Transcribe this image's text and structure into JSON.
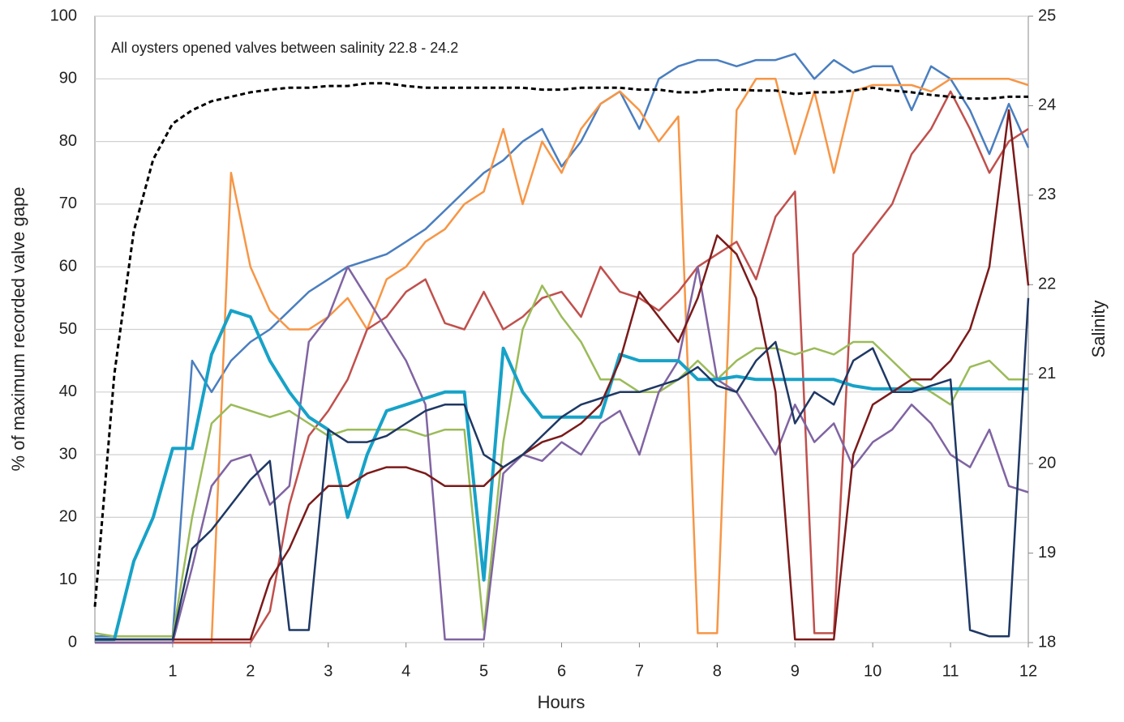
{
  "chart_data": {
    "type": "line",
    "annotation": "All oysters opened valves between salinity 22.8 - 24.2",
    "x_label": "Hours",
    "y_label": "% of maximum recorded valve gape",
    "y2_label": "Salinity",
    "x": [
      0,
      0.25,
      0.5,
      0.75,
      1,
      1.25,
      1.5,
      1.75,
      2,
      2.25,
      2.5,
      2.75,
      3,
      3.25,
      3.5,
      3.75,
      4,
      4.25,
      4.5,
      4.75,
      5,
      5.25,
      5.5,
      5.75,
      6,
      6.25,
      6.5,
      6.75,
      7,
      7.25,
      7.5,
      7.75,
      8,
      8.25,
      8.5,
      8.75,
      9,
      9.25,
      9.5,
      9.75,
      10,
      10.25,
      10.5,
      10.75,
      11,
      11.25,
      11.5,
      11.75,
      12
    ],
    "xlim": [
      0,
      12
    ],
    "xticks": [
      1,
      2,
      3,
      4,
      5,
      6,
      7,
      8,
      9,
      10,
      11,
      12
    ],
    "ylim": [
      0,
      100
    ],
    "yticks": [
      0,
      10,
      20,
      30,
      40,
      50,
      60,
      70,
      80,
      90,
      100
    ],
    "y2lim": [
      18,
      25
    ],
    "y2ticks": [
      18,
      19,
      20,
      21,
      22,
      23,
      24,
      25
    ],
    "grid": true,
    "series": [
      {
        "color": "#4a7ebf",
        "width": 2.5,
        "values": [
          1,
          1,
          1,
          1,
          1,
          45,
          40,
          45,
          48,
          50,
          53,
          56,
          58,
          60,
          61,
          62,
          64,
          66,
          69,
          72,
          75,
          77,
          80,
          82,
          76,
          80,
          86,
          88,
          82,
          90,
          92,
          93,
          93,
          92,
          93,
          93,
          94,
          90,
          93,
          91,
          92,
          92,
          85,
          92,
          90,
          85,
          78,
          86,
          79
        ]
      },
      {
        "color": "#f79646",
        "width": 2.5,
        "values": [
          0,
          0,
          0,
          0,
          0,
          0,
          0,
          75,
          60,
          53,
          50,
          50,
          52,
          55,
          50,
          58,
          60,
          64,
          66,
          70,
          72,
          82,
          70,
          80,
          75,
          82,
          86,
          88,
          85,
          80,
          84,
          1.5,
          1.5,
          85,
          90,
          90,
          78,
          88,
          75,
          88,
          89,
          89,
          89,
          88,
          90,
          90,
          90,
          90,
          89
        ]
      },
      {
        "color": "#c0504d",
        "width": 2.5,
        "values": [
          0,
          0,
          0,
          0,
          0,
          0,
          0,
          0,
          0,
          5,
          22,
          33,
          37,
          42,
          50,
          52,
          56,
          58,
          51,
          50,
          56,
          50,
          52,
          55,
          56,
          52,
          60,
          56,
          55,
          53,
          56,
          60,
          62,
          64,
          58,
          68,
          72,
          1.5,
          1.5,
          62,
          66,
          70,
          78,
          82,
          88,
          82,
          75,
          80,
          82
        ]
      },
      {
        "color": "#9bbb59",
        "width": 2.5,
        "values": [
          1.5,
          1,
          1,
          1,
          1,
          20,
          35,
          38,
          37,
          36,
          37,
          35,
          33,
          34,
          34,
          34,
          34,
          33,
          34,
          34,
          2,
          32,
          50,
          57,
          52,
          48,
          42,
          42,
          40,
          40,
          42,
          45,
          42,
          45,
          47,
          47,
          46,
          47,
          46,
          48,
          48,
          45,
          42,
          40,
          38,
          44,
          45,
          42,
          42
        ]
      },
      {
        "color": "#8064a2",
        "width": 2.5,
        "values": [
          0,
          0,
          0,
          0,
          0,
          12,
          25,
          29,
          30,
          22,
          25,
          48,
          52,
          60,
          55,
          50,
          45,
          38,
          0.5,
          0.5,
          0.5,
          27,
          30,
          29,
          32,
          30,
          35,
          37,
          30,
          40,
          45,
          60,
          42,
          40,
          35,
          30,
          38,
          32,
          35,
          28,
          32,
          34,
          38,
          35,
          30,
          28,
          34,
          25,
          24
        ]
      },
      {
        "color": "#17a2c8",
        "width": 4,
        "values": [
          0.5,
          0.5,
          13,
          20,
          31,
          31,
          46,
          53,
          52,
          45,
          40,
          36,
          34,
          20,
          30,
          37,
          38,
          39,
          40,
          40,
          10,
          47,
          40,
          36,
          36,
          36,
          36,
          46,
          45,
          45,
          45,
          42,
          42,
          42.5,
          42,
          42,
          42,
          42,
          42,
          41,
          40.5,
          40.5,
          40.5,
          40.5,
          40.5,
          40.5,
          40.5,
          40.5,
          40.5
        ]
      },
      {
        "color": "#7b1a1a",
        "width": 2.5,
        "values": [
          0.5,
          0.5,
          0.5,
          0.5,
          0.5,
          0.5,
          0.5,
          0.5,
          0.5,
          10,
          15,
          22,
          25,
          25,
          27,
          28,
          28,
          27,
          25,
          25,
          25,
          28,
          30,
          32,
          33,
          35,
          38,
          45,
          56,
          52,
          48,
          55,
          65,
          62,
          55,
          40,
          0.5,
          0.5,
          0.5,
          30,
          38,
          40,
          42,
          42,
          45,
          50,
          60,
          85,
          57
        ]
      },
      {
        "color": "#1f3864",
        "width": 2.5,
        "values": [
          0.5,
          0.5,
          0.5,
          0.5,
          0.5,
          15,
          18,
          22,
          26,
          29,
          2,
          2,
          34,
          32,
          32,
          33,
          35,
          37,
          38,
          38,
          30,
          28,
          30,
          33,
          36,
          38,
          39,
          40,
          40,
          41,
          42,
          44,
          41,
          40,
          45,
          48,
          35,
          40,
          38,
          45,
          47,
          40,
          40,
          41,
          42,
          2,
          1,
          1,
          55
        ]
      },
      {
        "color": "#000000",
        "width": 3,
        "dashed": true,
        "axis": "y2",
        "values": [
          18.4,
          21.0,
          22.6,
          23.4,
          23.8,
          23.95,
          24.05,
          24.1,
          24.15,
          24.18,
          24.2,
          24.2,
          24.22,
          24.22,
          24.25,
          24.25,
          24.22,
          24.2,
          24.2,
          24.2,
          24.2,
          24.2,
          24.2,
          24.18,
          24.18,
          24.2,
          24.2,
          24.2,
          24.18,
          24.18,
          24.15,
          24.15,
          24.18,
          24.18,
          24.17,
          24.17,
          24.13,
          24.15,
          24.15,
          24.17,
          24.2,
          24.17,
          24.15,
          24.12,
          24.1,
          24.08,
          24.08,
          24.1,
          24.1
        ]
      }
    ]
  }
}
